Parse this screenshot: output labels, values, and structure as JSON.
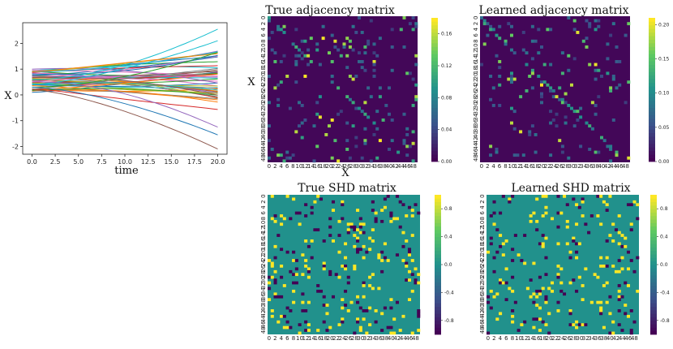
{
  "chart_data": [
    {
      "id": "trajectories",
      "type": "line",
      "title": "",
      "xlabel": "time",
      "ylabel": "X",
      "xlim": [
        -1,
        21
      ],
      "ylim": [
        -2.3,
        2.8
      ],
      "xticks": [
        "0.0",
        "2.5",
        "5.0",
        "7.5",
        "10.0",
        "12.5",
        "15.0",
        "17.5",
        "20.0"
      ],
      "yticks": [
        "-2",
        "-1",
        "0",
        "1",
        "2"
      ],
      "num_series": 50,
      "time_range": [
        0,
        20
      ],
      "highlighted_series": [
        {
          "color": "#17becf",
          "start": 0.6,
          "end": 2.55
        },
        {
          "color": "#17becf",
          "start": 0.4,
          "end": 2.1
        },
        {
          "color": "#ff7f0e",
          "start": 0.9,
          "end": 1.6
        },
        {
          "color": "#2ca02c",
          "start": 0.3,
          "end": 1.65
        },
        {
          "color": "#8c564b",
          "start": 0.2,
          "end": -2.1
        },
        {
          "color": "#1f77b4",
          "start": 0.3,
          "end": -1.55
        },
        {
          "color": "#9467bd",
          "start": 0.5,
          "end": -1.25
        }
      ]
    },
    {
      "id": "true-adjacency",
      "type": "heatmap",
      "title": "True adjacency matrix",
      "xlabel": "X",
      "ylabel": "X",
      "size": 50,
      "tick_labels": [
        "0",
        "2",
        "4",
        "6",
        "8",
        "10",
        "12",
        "14",
        "16",
        "18",
        "20",
        "22",
        "24",
        "26",
        "28",
        "30",
        "32",
        "34",
        "36",
        "38",
        "40",
        "42",
        "44",
        "46",
        "48"
      ],
      "colorbar_ticks": [
        "0.00",
        "0.04",
        "0.08",
        "0.12",
        "0.16"
      ],
      "vmin": 0,
      "vmax": 0.18,
      "colormap": "viridis"
    },
    {
      "id": "learned-adjacency",
      "type": "heatmap",
      "title": "Learned adjacency matrix",
      "xlabel": "",
      "ylabel": "",
      "size": 50,
      "tick_labels": [
        "0",
        "2",
        "4",
        "6",
        "8",
        "10",
        "12",
        "14",
        "16",
        "18",
        "20",
        "22",
        "24",
        "26",
        "28",
        "30",
        "32",
        "34",
        "36",
        "38",
        "40",
        "42",
        "44",
        "46",
        "48"
      ],
      "colorbar_ticks": [
        "0.00",
        "0.05",
        "0.10",
        "0.15",
        "0.20"
      ],
      "vmin": 0,
      "vmax": 0.21,
      "colormap": "viridis"
    },
    {
      "id": "true-shd",
      "type": "heatmap",
      "title": "True SHD matrix",
      "xlabel": "",
      "ylabel": "",
      "size": 50,
      "tick_labels": [
        "0",
        "2",
        "4",
        "6",
        "8",
        "10",
        "12",
        "14",
        "16",
        "18",
        "20",
        "22",
        "24",
        "26",
        "28",
        "30",
        "32",
        "34",
        "36",
        "38",
        "40",
        "42",
        "44",
        "46",
        "48"
      ],
      "colorbar_ticks": [
        "-0.8",
        "-0.4",
        "0.0",
        "0.4",
        "0.8"
      ],
      "vmin": -1,
      "vmax": 1,
      "colormap": "viridis",
      "value_levels": [
        -1,
        0,
        1
      ]
    },
    {
      "id": "learned-shd",
      "type": "heatmap",
      "title": "Learned SHD matrix",
      "xlabel": "",
      "ylabel": "",
      "size": 50,
      "tick_labels": [
        "0",
        "2",
        "4",
        "6",
        "8",
        "10",
        "12",
        "14",
        "16",
        "18",
        "20",
        "22",
        "24",
        "26",
        "28",
        "30",
        "32",
        "34",
        "36",
        "38",
        "40",
        "42",
        "44",
        "46",
        "48"
      ],
      "colorbar_ticks": [
        "-0.8",
        "-0.4",
        "0.0",
        "0.4",
        "0.8"
      ],
      "vmin": -1,
      "vmax": 1,
      "colormap": "viridis",
      "value_levels": [
        -1,
        0,
        1
      ]
    }
  ]
}
